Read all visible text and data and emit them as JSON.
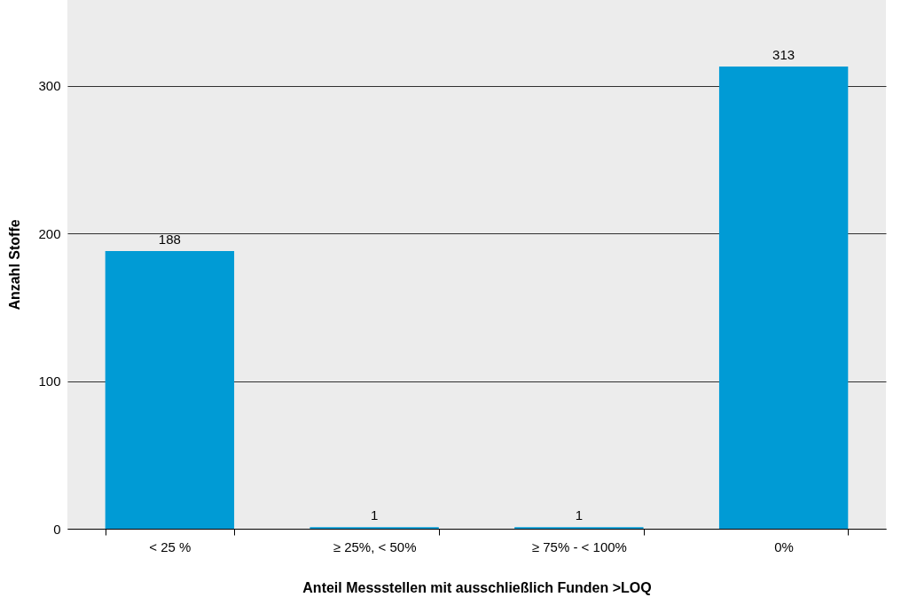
{
  "chart_data": {
    "type": "bar",
    "xlabel": "Anteil Messstellen mit ausschließlich Funden >LOQ",
    "ylabel": "Anzahl Stoffe",
    "categories": [
      "< 25 %",
      "≥ 25%, < 50%",
      "≥ 75% - < 100%",
      "0%"
    ],
    "values": [
      188,
      1,
      1,
      313
    ],
    "color": "#009bd5",
    "ylim": [
      0,
      358
    ],
    "yticks": [
      0,
      100,
      200,
      300
    ],
    "grid": "y",
    "data_labels": true
  }
}
